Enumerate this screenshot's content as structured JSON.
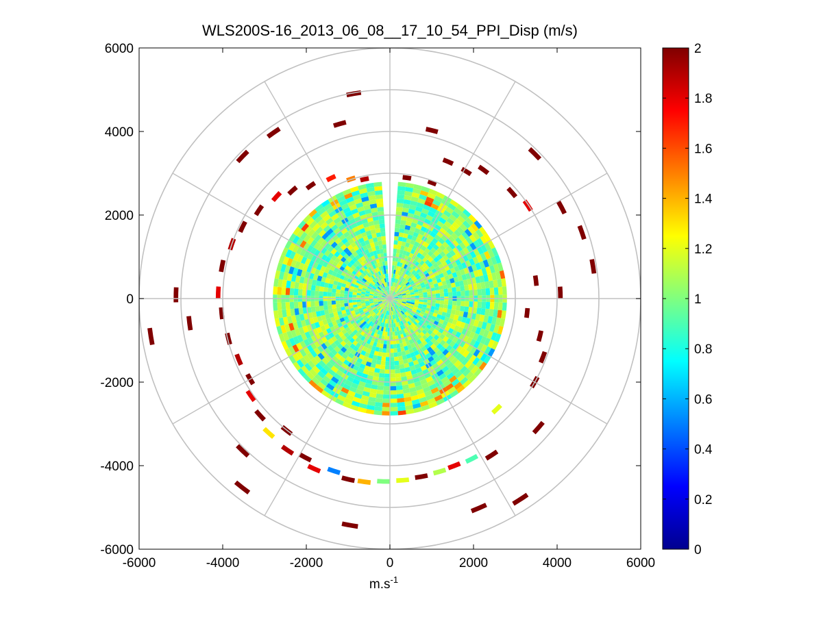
{
  "chart_data": {
    "type": "heatmap",
    "subtype": "polar-ppi",
    "title": "WLS200S-16_2013_06_08__17_10_54_PPI_Disp (m/s)",
    "xlabel": "m.s",
    "xlabel_sup": "-1",
    "ylabel": "",
    "xlim": [
      -6000,
      6000
    ],
    "ylim": [
      -6000,
      6000
    ],
    "xticks": [
      -6000,
      -4000,
      -2000,
      0,
      2000,
      4000,
      6000
    ],
    "yticks": [
      6000,
      4000,
      2000,
      0,
      -2000,
      -4000,
      -6000
    ],
    "xtick_labels": [
      "-6000",
      "-4000",
      "-2000",
      "0",
      "2000",
      "4000",
      "6000"
    ],
    "ytick_labels": [
      "6000",
      "4000",
      "2000",
      "0",
      "-2000",
      "-4000",
      "-6000"
    ],
    "range_rings": [
      1000,
      2000,
      3000,
      4000,
      5000,
      6000
    ],
    "spokes_deg": [
      0,
      30,
      60,
      90,
      120,
      150,
      180,
      210,
      240,
      270,
      300,
      330
    ],
    "colorbar": {
      "min": 0,
      "max": 2,
      "colormap": "jet",
      "ticks": [
        0,
        0.2,
        0.4,
        0.6,
        0.8,
        1,
        1.2,
        1.4,
        1.6,
        1.8,
        2
      ],
      "tick_labels": [
        "0",
        "0.2",
        "0.4",
        "0.6",
        "0.8",
        "1",
        "1.2",
        "1.4",
        "1.6",
        "1.8",
        "2"
      ]
    },
    "core_field": {
      "description": "dense data within ~2800 m, values mostly 0.8-1.2, gap sector at north",
      "max_range": 2800,
      "gap_azimuth_deg": [
        355,
        4
      ],
      "typical_value": 1.0
    },
    "sparse_gates": [
      {
        "az": 348,
        "r": 2920,
        "v": 1.9
      },
      {
        "az": 342,
        "r": 3010,
        "v": 1.5
      },
      {
        "az": 334,
        "r": 3210,
        "v": 1.7
      },
      {
        "az": 325,
        "r": 3300,
        "v": 2.0
      },
      {
        "az": 318,
        "r": 3480,
        "v": 2.0
      },
      {
        "az": 312,
        "r": 3650,
        "v": 1.8
      },
      {
        "az": 304,
        "r": 3780,
        "v": 2.0
      },
      {
        "az": 296,
        "r": 3920,
        "v": 2.0
      },
      {
        "az": 289,
        "r": 4000,
        "v": 1.9
      },
      {
        "az": 281,
        "r": 4090,
        "v": 2.0
      },
      {
        "az": 272,
        "r": 4110,
        "v": 1.8
      },
      {
        "az": 265,
        "r": 4040,
        "v": 2.0
      },
      {
        "az": 256,
        "r": 3980,
        "v": 2.0
      },
      {
        "az": 248,
        "r": 3900,
        "v": 1.9
      },
      {
        "az": 240,
        "r": 3860,
        "v": 2.0
      },
      {
        "az": 235,
        "r": 4060,
        "v": 1.8
      },
      {
        "az": 228,
        "r": 4180,
        "v": 2.0
      },
      {
        "az": 222,
        "r": 4330,
        "v": 1.3
      },
      {
        "az": 218,
        "r": 4010,
        "v": 2.0
      },
      {
        "az": 214,
        "r": 4380,
        "v": 1.9
      },
      {
        "az": 208,
        "r": 4310,
        "v": 2.0
      },
      {
        "az": 204,
        "r": 4460,
        "v": 1.8
      },
      {
        "az": 198,
        "r": 4340,
        "v": 0.5
      },
      {
        "az": 193,
        "r": 4440,
        "v": 2.0
      },
      {
        "az": 188,
        "r": 4430,
        "v": 1.4
      },
      {
        "az": 182,
        "r": 4380,
        "v": 1.0
      },
      {
        "az": 176,
        "r": 4360,
        "v": 1.2
      },
      {
        "az": 170,
        "r": 4330,
        "v": 2.0
      },
      {
        "az": 164,
        "r": 4310,
        "v": 1.1
      },
      {
        "az": 159,
        "r": 4290,
        "v": 1.8
      },
      {
        "az": 153,
        "r": 4310,
        "v": 0.9
      },
      {
        "az": 147,
        "r": 4470,
        "v": 2.0
      },
      {
        "az": 136,
        "r": 3680,
        "v": 1.2
      },
      {
        "az": 131,
        "r": 4710,
        "v": 2.0
      },
      {
        "az": 120,
        "r": 4000,
        "v": 2.0
      },
      {
        "az": 111,
        "r": 3920,
        "v": 2.0
      },
      {
        "az": 104,
        "r": 3700,
        "v": 2.0
      },
      {
        "az": 96,
        "r": 3300,
        "v": 2.0
      },
      {
        "az": 88,
        "r": 4080,
        "v": 2.0
      },
      {
        "az": 83,
        "r": 3520,
        "v": 2.0
      },
      {
        "az": 81,
        "r": 4920,
        "v": 2.0
      },
      {
        "az": 71,
        "r": 4860,
        "v": 2.0
      },
      {
        "az": 62,
        "r": 4650,
        "v": 2.0
      },
      {
        "az": 56,
        "r": 3980,
        "v": 1.8
      },
      {
        "az": 49,
        "r": 3870,
        "v": 2.0
      },
      {
        "az": 45,
        "r": 4900,
        "v": 2.0
      },
      {
        "az": 36,
        "r": 3810,
        "v": 2.0
      },
      {
        "az": 31,
        "r": 3550,
        "v": 2.0
      },
      {
        "az": 23,
        "r": 3560,
        "v": 2.0
      },
      {
        "az": 14,
        "r": 4150,
        "v": 2.0
      },
      {
        "az": 8,
        "r": 2920,
        "v": 2.0
      },
      {
        "az": 20,
        "r": 2950,
        "v": 2.0
      },
      {
        "az": 190,
        "r": 5510,
        "v": 2.0
      },
      {
        "az": 218,
        "r": 5740,
        "v": 2.0
      },
      {
        "az": 224,
        "r": 5070,
        "v": 2.0
      },
      {
        "az": 157,
        "r": 5450,
        "v": 2.0
      },
      {
        "az": 147,
        "r": 5730,
        "v": 2.0
      },
      {
        "az": 261,
        "r": 5790,
        "v": 2.0
      },
      {
        "az": 325,
        "r": 4850,
        "v": 2.0
      },
      {
        "az": 344,
        "r": 4350,
        "v": 2.0
      },
      {
        "az": 350,
        "r": 4980,
        "v": 2.0
      },
      {
        "az": 263,
        "r": 4830,
        "v": 2.0
      },
      {
        "az": 271,
        "r": 5120,
        "v": 2.0
      },
      {
        "az": 314,
        "r": 4900,
        "v": 2.0
      }
    ]
  }
}
